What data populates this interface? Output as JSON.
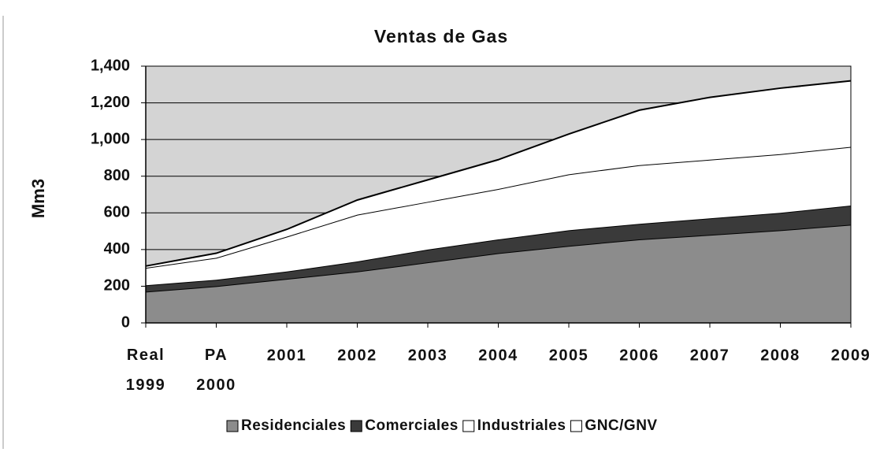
{
  "chart_data": {
    "type": "stacked_area",
    "title": "Ventas de Gas",
    "y_label": "Mm3",
    "categories": [
      "Real 1999",
      "PA 2000",
      "2001",
      "2002",
      "2003",
      "2004",
      "2005",
      "2006",
      "2007",
      "2008",
      "2009"
    ],
    "series": [
      {
        "name": "Residenciales",
        "color": "#8c8c8c",
        "values": [
          170,
          200,
          240,
          280,
          330,
          380,
          420,
          455,
          480,
          505,
          535
        ]
      },
      {
        "name": "Comerciales",
        "color": "#3a3a3a",
        "values": [
          35,
          35,
          40,
          55,
          70,
          75,
          85,
          85,
          90,
          95,
          105
        ]
      },
      {
        "name": "Industriales",
        "color": "#ffffff",
        "values": [
          95,
          120,
          190,
          255,
          260,
          275,
          305,
          320,
          320,
          320,
          320
        ]
      },
      {
        "name": "GNC/GNV",
        "color": "#ffffff",
        "values": [
          10,
          25,
          40,
          80,
          120,
          160,
          220,
          300,
          340,
          360,
          360
        ]
      }
    ],
    "ylim": [
      0,
      1400
    ],
    "yticks": [
      0,
      200,
      400,
      600,
      800,
      {
        "value": 1000,
        "label": "1,000"
      },
      {
        "value": 1200,
        "label": "1,200"
      },
      {
        "value": 1400,
        "label": "1,400"
      }
    ],
    "grid": true,
    "plot_background": "#d4d4d4",
    "legend": "bottom"
  }
}
